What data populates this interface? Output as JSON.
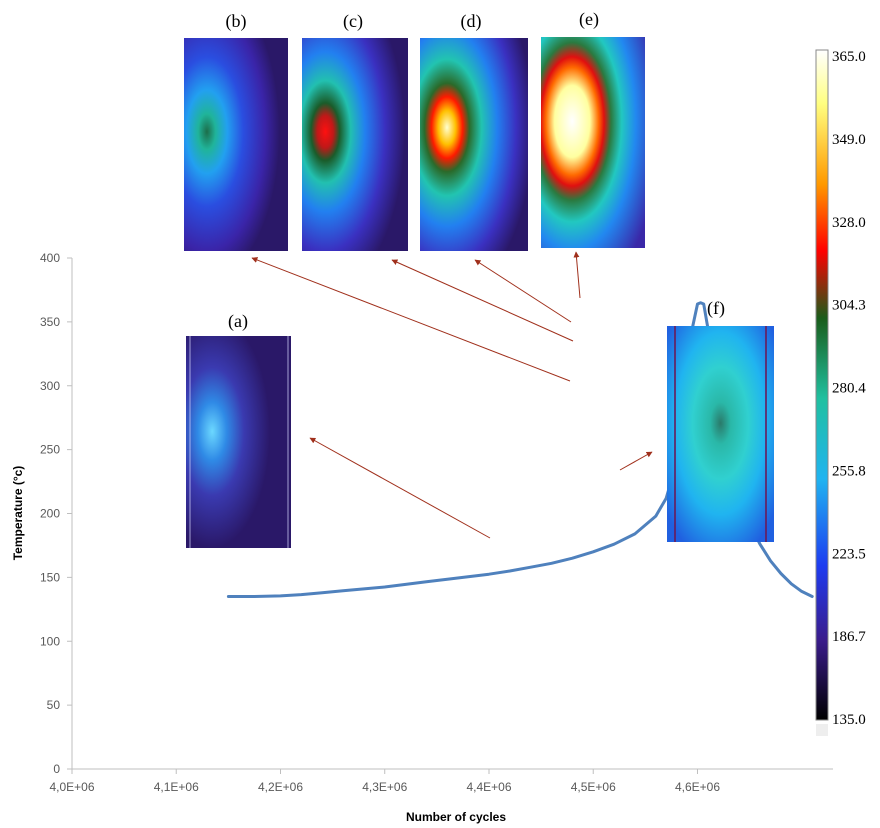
{
  "chart_data": {
    "type": "line",
    "xlabel": "Number of cycles",
    "ylabel": "Temperature (°c)",
    "xlim": [
      4000000,
      4730000
    ],
    "ylim": [
      0,
      400
    ],
    "x_tick_labels": [
      "4,0E+06",
      "4,1E+06",
      "4,2E+06",
      "4,3E+06",
      "4,4E+06",
      "4,5E+06",
      "4,6E+06"
    ],
    "x_tick_values": [
      4000000,
      4100000,
      4200000,
      4300000,
      4400000,
      4500000,
      4600000
    ],
    "y_ticks": [
      0,
      50,
      100,
      150,
      200,
      250,
      300,
      350,
      400
    ],
    "grid": false,
    "series": [
      {
        "color": "#4f81bd",
        "x": [
          4150000,
          4175000,
          4200000,
          4220000,
          4240000,
          4260000,
          4280000,
          4300000,
          4320000,
          4340000,
          4360000,
          4380000,
          4400000,
          4420000,
          4440000,
          4460000,
          4480000,
          4500000,
          4520000,
          4540000,
          4560000,
          4570000,
          4580000,
          4585000,
          4590000,
          4595000,
          4600000,
          4603000,
          4606000,
          4610000,
          4615000,
          4620000,
          4630000,
          4640000,
          4650000,
          4660000,
          4670000,
          4680000,
          4690000,
          4700000,
          4710000
        ],
        "y": [
          135,
          135,
          135.5,
          136.5,
          138,
          139.5,
          141,
          142.5,
          144.5,
          146.5,
          148.5,
          150.5,
          152.5,
          155,
          158,
          161,
          165,
          170,
          176,
          184,
          198,
          212,
          240,
          270,
          310,
          345,
          364,
          365,
          364,
          345,
          305,
          270,
          235,
          210,
          192,
          176,
          163,
          153,
          145,
          139,
          135
        ]
      }
    ],
    "colorbar": {
      "tick_labels": [
        "365.0",
        "349.0",
        "328.0",
        "304.3",
        "280.4",
        "255.8",
        "223.5",
        "186.7",
        "135.0"
      ],
      "colors": [
        "#ffffff",
        "#ffff80",
        "#ff9900",
        "#ff0000",
        "#1a5c1a",
        "#20c0a0",
        "#20b4f0",
        "#1e3cf0",
        "#3a1c8c",
        "#000000"
      ]
    },
    "insets": [
      {
        "label": "(a)",
        "x": 4490000,
        "y": 175
      },
      {
        "label": "(b)",
        "x": 4570000,
        "y": 300
      },
      {
        "label": "(c)",
        "x": 4575000,
        "y": 335
      },
      {
        "label": "(d)",
        "x": 4570000,
        "y": 350
      },
      {
        "label": "(e)",
        "x": 4600000,
        "y": 360
      },
      {
        "label": "(f)",
        "x": 4640000,
        "y": 230
      }
    ]
  }
}
